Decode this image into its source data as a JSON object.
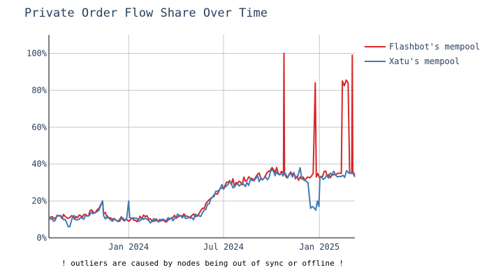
{
  "chart_data": {
    "type": "line",
    "title": "Private Order Flow Share Over Time",
    "xlabel": "",
    "ylabel": "",
    "x_range": [
      "2023-08-01",
      "2025-03-10"
    ],
    "ylim": [
      0,
      110
    ],
    "y_ticks": [
      0,
      20,
      40,
      60,
      80,
      100
    ],
    "y_tick_labels": [
      "0%",
      "20%",
      "40%",
      "60%",
      "80%",
      "100%"
    ],
    "x_ticks": [
      "2024-01-01",
      "2024-07-01",
      "2025-01-01"
    ],
    "x_tick_labels": [
      "Jan 2024",
      "Jul 2024",
      "Jan 2025"
    ],
    "grid": true,
    "legend_position": "top-right",
    "annotation": "! outliers are caused by nodes being out of sync or offline !",
    "series": [
      {
        "name": "Flashbot's mempool",
        "color": "#d62728",
        "points": [
          [
            "2023-08-01",
            11
          ],
          [
            "2023-08-20",
            12
          ],
          [
            "2023-09-10",
            11
          ],
          [
            "2023-10-01",
            12
          ],
          [
            "2023-10-25",
            14
          ],
          [
            "2023-11-05",
            16
          ],
          [
            "2023-11-12",
            20
          ],
          [
            "2023-11-14",
            13
          ],
          [
            "2023-12-01",
            10
          ],
          [
            "2023-12-15",
            10
          ],
          [
            "2024-01-05",
            10
          ],
          [
            "2024-01-20",
            10
          ],
          [
            "2024-02-05",
            12
          ],
          [
            "2024-02-15",
            9
          ],
          [
            "2024-03-01",
            10
          ],
          [
            "2024-03-20",
            10
          ],
          [
            "2024-04-10",
            12
          ],
          [
            "2024-05-01",
            12
          ],
          [
            "2024-05-15",
            13
          ],
          [
            "2024-05-25",
            16
          ],
          [
            "2024-06-10",
            22
          ],
          [
            "2024-06-25",
            27
          ],
          [
            "2024-07-10",
            30
          ],
          [
            "2024-07-25",
            30
          ],
          [
            "2024-08-15",
            31
          ],
          [
            "2024-09-01",
            33
          ],
          [
            "2024-09-20",
            34
          ],
          [
            "2024-10-05",
            37
          ],
          [
            "2024-10-20",
            36
          ],
          [
            "2024-10-24",
            35
          ],
          [
            "2024-10-25",
            100
          ],
          [
            "2024-10-26",
            35
          ],
          [
            "2024-11-10",
            34
          ],
          [
            "2024-11-25",
            33
          ],
          [
            "2024-12-10",
            33
          ],
          [
            "2024-12-20",
            35
          ],
          [
            "2024-12-24",
            84
          ],
          [
            "2024-12-26",
            33
          ],
          [
            "2025-01-10",
            36
          ],
          [
            "2025-01-25",
            34
          ],
          [
            "2025-02-05",
            35
          ],
          [
            "2025-02-12",
            35
          ],
          [
            "2025-02-14",
            85
          ],
          [
            "2025-02-25",
            84
          ],
          [
            "2025-02-28",
            35
          ],
          [
            "2025-03-04",
            35
          ],
          [
            "2025-03-05",
            99
          ],
          [
            "2025-03-06",
            36
          ],
          [
            "2025-03-10",
            34
          ]
        ]
      },
      {
        "name": "Xatu's mempool",
        "color": "#3f7bb5",
        "points": [
          [
            "2023-08-01",
            11
          ],
          [
            "2023-08-10",
            9
          ],
          [
            "2023-08-20",
            12
          ],
          [
            "2023-09-01",
            10
          ],
          [
            "2023-09-10",
            6
          ],
          [
            "2023-09-15",
            11
          ],
          [
            "2023-10-01",
            11
          ],
          [
            "2023-10-25",
            13
          ],
          [
            "2023-11-05",
            15
          ],
          [
            "2023-11-12",
            20
          ],
          [
            "2023-11-14",
            12
          ],
          [
            "2023-12-01",
            9
          ],
          [
            "2023-12-15",
            9
          ],
          [
            "2023-12-28",
            10
          ],
          [
            "2024-01-01",
            20
          ],
          [
            "2024-01-03",
            11
          ],
          [
            "2024-01-20",
            9
          ],
          [
            "2024-02-05",
            10
          ],
          [
            "2024-02-15",
            9
          ],
          [
            "2024-03-01",
            9
          ],
          [
            "2024-03-20",
            10
          ],
          [
            "2024-04-10",
            12
          ],
          [
            "2024-05-01",
            11
          ],
          [
            "2024-05-15",
            12
          ],
          [
            "2024-05-25",
            15
          ],
          [
            "2024-06-10",
            22
          ],
          [
            "2024-06-25",
            27
          ],
          [
            "2024-07-10",
            29
          ],
          [
            "2024-07-25",
            29
          ],
          [
            "2024-08-15",
            30
          ],
          [
            "2024-09-01",
            32
          ],
          [
            "2024-09-20",
            33
          ],
          [
            "2024-10-05",
            36
          ],
          [
            "2024-10-20",
            35
          ],
          [
            "2024-11-10",
            33
          ],
          [
            "2024-11-20",
            33
          ],
          [
            "2024-11-25",
            38
          ],
          [
            "2024-11-28",
            32
          ],
          [
            "2024-12-05",
            31
          ],
          [
            "2024-12-10",
            30
          ],
          [
            "2024-12-15",
            16
          ],
          [
            "2024-12-25",
            15
          ],
          [
            "2024-12-28",
            20
          ],
          [
            "2024-12-31",
            17
          ],
          [
            "2025-01-02",
            33
          ],
          [
            "2025-01-15",
            34
          ],
          [
            "2025-02-01",
            34
          ],
          [
            "2025-02-15",
            34
          ],
          [
            "2025-03-01",
            35
          ],
          [
            "2025-03-10",
            33
          ]
        ]
      }
    ]
  }
}
